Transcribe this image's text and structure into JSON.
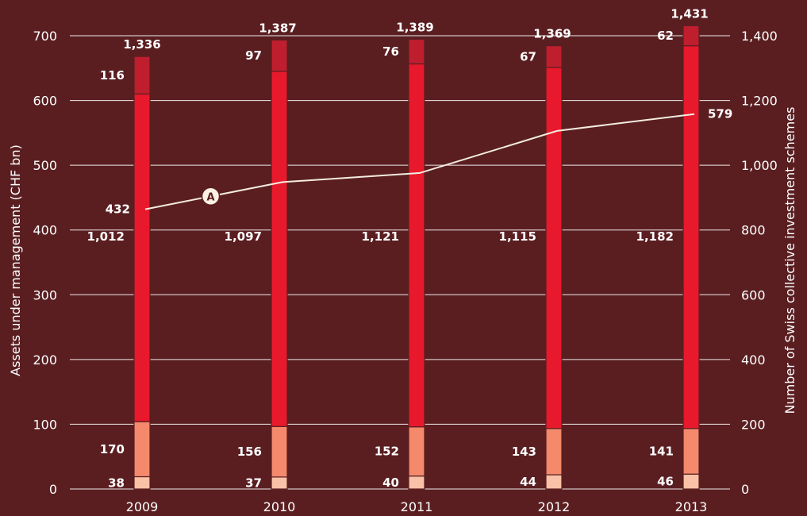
{
  "chart_data": {
    "type": "bar",
    "stacked": true,
    "categories": [
      "2009",
      "2010",
      "2011",
      "2012",
      "2013"
    ],
    "series": [
      {
        "values": [
          38,
          37,
          40,
          44,
          46
        ],
        "color": "#f9c2a8"
      },
      {
        "values": [
          170,
          156,
          152,
          143,
          141
        ],
        "color": "#f4896c"
      },
      {
        "values": [
          1012,
          1097,
          1121,
          1115,
          1182
        ],
        "color": "#e8192c"
      },
      {
        "values": [
          116,
          97,
          76,
          67,
          62
        ],
        "color": "#bf1e2e"
      }
    ],
    "totals": [
      1336,
      1387,
      1389,
      1369,
      1431
    ],
    "line": {
      "values": [
        432,
        474,
        488,
        553,
        579
      ],
      "labels": [
        "432",
        "",
        "",
        "",
        "579"
      ],
      "marker": "A",
      "color": "#f3ece0"
    },
    "y_left": {
      "label": "Assets under management (CHF bn)",
      "lim": [
        0,
        700
      ],
      "ticks": [
        "0",
        "100",
        "200",
        "300",
        "400",
        "500",
        "600",
        "700"
      ]
    },
    "y_right": {
      "label": "Number of Swiss collective investment schemes",
      "lim": [
        0,
        1400
      ],
      "ticks": [
        "0",
        "200",
        "400",
        "600",
        "800",
        "1,000",
        "1,200",
        "1,400"
      ]
    },
    "segment_labels": [
      [
        "38",
        "170",
        "1,012",
        "116"
      ],
      [
        "37",
        "156",
        "1,097",
        "97"
      ],
      [
        "40",
        "152",
        "1,121",
        "76"
      ],
      [
        "44",
        "143",
        "1,115",
        "67"
      ],
      [
        "46",
        "141",
        "1,182",
        "62"
      ]
    ],
    "total_labels": [
      "1,336",
      "1,387",
      "1,389",
      "1,369",
      "1,431"
    ],
    "grid": true,
    "background": "#5a1e21"
  }
}
